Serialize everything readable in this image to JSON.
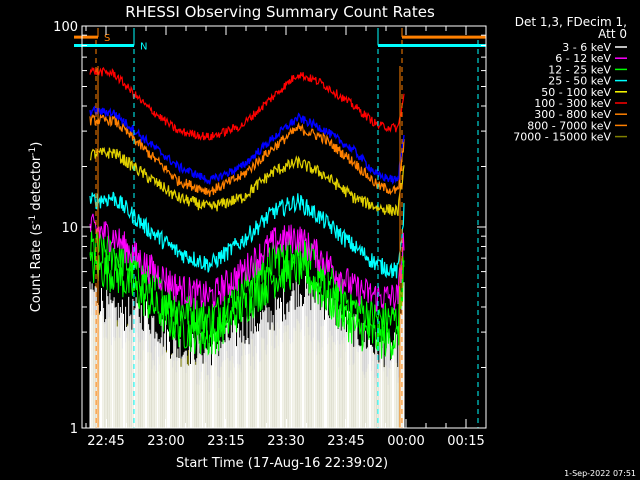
{
  "chart_data": {
    "type": "line",
    "title": "RHESSI Observing Summary Count Rates",
    "xlabel": "Start Time (17-Aug-16 22:39:02)",
    "ylabel": "Count Rate (s",
    "ylabel_sup": "-1",
    "ylabel_tail": " detector",
    "ylabel_tail_sup": "-1",
    "ylabel_close": ")",
    "y_scale": "log",
    "ylim": [
      1,
      100
    ],
    "y_ticks": [
      {
        "value": 1,
        "label": "1"
      },
      {
        "value": 10,
        "label": "10"
      },
      {
        "value": 100,
        "label": "100"
      }
    ],
    "xlim": [
      "22:39:02",
      "00:20:00"
    ],
    "x_ticks": [
      "22:45",
      "23:00",
      "23:15",
      "23:30",
      "23:45",
      "00:00",
      "00:15"
    ],
    "x_tick_minutes": [
      6,
      21,
      36,
      51,
      66,
      81,
      96
    ],
    "xlim_minutes": [
      0,
      101
    ],
    "legend_header": [
      "Det 1,3, FDecim 1,",
      "Att 0"
    ],
    "legend_placement": "right",
    "series": [
      {
        "name": "3 - 6 keV",
        "color": "#000000",
        "profile": [
          4.0,
          3.0,
          3.0,
          2.0,
          2.0,
          2.5,
          3.0,
          4.0,
          3.5,
          2.5,
          2.0,
          2.0,
          4.0
        ],
        "noise": 0.3,
        "highlight_color": "#ffffff"
      },
      {
        "name": "6 - 12 keV",
        "color": "#ff00ff",
        "profile": [
          10.0,
          9.0,
          6.5,
          5.0,
          4.5,
          6.0,
          8.5,
          9.0,
          7.0,
          5.0,
          4.5,
          4.5,
          9.0
        ],
        "noise": 0.18
      },
      {
        "name": "12 - 25 keV",
        "color": "#00ff00",
        "profile": [
          8.0,
          7.5,
          5.5,
          4.0,
          3.5,
          5.0,
          7.0,
          8.0,
          6.0,
          4.0,
          3.5,
          3.5,
          8.0
        ],
        "noise": 0.22
      },
      {
        "name": "25 - 50 keV",
        "color": "#00ffff",
        "profile": [
          13.5,
          14.0,
          10.0,
          7.5,
          6.5,
          8.5,
          12.0,
          13.5,
          11.0,
          8.0,
          6.5,
          6.0,
          12.0
        ],
        "noise": 0.1
      },
      {
        "name": "50 - 100 keV",
        "color": "#ffff00",
        "profile": [
          23.0,
          23.5,
          18.0,
          14.0,
          12.5,
          14.0,
          19.0,
          21.0,
          18.5,
          14.0,
          12.5,
          12.0,
          20.0
        ],
        "noise": 0.07,
        "plot_color": "#e0d000"
      },
      {
        "name": "100 - 300 keV",
        "color": "#ff0000",
        "profile": [
          60.0,
          58.0,
          40.0,
          30.0,
          28.0,
          32.0,
          45.0,
          58.0,
          52.0,
          40.0,
          32.0,
          31.0,
          45.0
        ],
        "noise": 0.05
      },
      {
        "name": "300 - 800 keV",
        "color": "#ff8000",
        "profile": [
          34.0,
          34.0,
          24.0,
          17.0,
          15.0,
          18.0,
          25.0,
          31.0,
          28.0,
          21.0,
          16.0,
          15.0,
          26.0
        ],
        "noise": 0.06
      },
      {
        "name": "800 - 7000 keV",
        "color": "#ff8000",
        "profile": [
          34.0,
          34.0,
          24.0,
          17.0,
          15.0,
          18.0,
          25.0,
          31.0,
          28.0,
          21.0,
          16.0,
          15.0,
          26.0
        ],
        "noise": 0.06
      },
      {
        "name": "7000 - 15000 keV",
        "color": "#808000",
        "profile": [
          2.8,
          2.4,
          2.0,
          1.7,
          1.5,
          1.8,
          2.2,
          2.6,
          2.2,
          1.8,
          1.6,
          1.5,
          2.8
        ],
        "noise": 0.3
      }
    ],
    "blue_profile": [
      38.0,
      37.0,
      27.0,
      20.0,
      17.0,
      20.0,
      28.0,
      35.0,
      31.0,
      24.0,
      18.0,
      17.0,
      30.0
    ],
    "profile_minutes": [
      2,
      8,
      16,
      24,
      32,
      40,
      48,
      54,
      60,
      68,
      74,
      79,
      80.5
    ],
    "data_range_minutes": [
      2,
      80.5
    ],
    "flags": [
      {
        "label": "S",
        "color": "#ff8000",
        "start_min": -2,
        "end_min": 4,
        "tail_start_min": 80,
        "tail_end_min": 101,
        "value": 88
      },
      {
        "label": "N",
        "color": "#00ffff",
        "start_min": -2,
        "end_min": 13,
        "tail_start_min": 74,
        "tail_end_min": 101,
        "value": 80
      }
    ],
    "dashed_markers": [
      {
        "minute": 3.5,
        "color": "#ff8000"
      },
      {
        "minute": 13,
        "color": "#00ffff"
      },
      {
        "minute": 74,
        "color": "#00ffff"
      },
      {
        "minute": 80,
        "color": "#ff8000"
      },
      {
        "minute": 99,
        "color": "#00ffff"
      }
    ],
    "grid": false
  },
  "footer": {
    "timestamp": "1-Sep-2022 07:51"
  }
}
